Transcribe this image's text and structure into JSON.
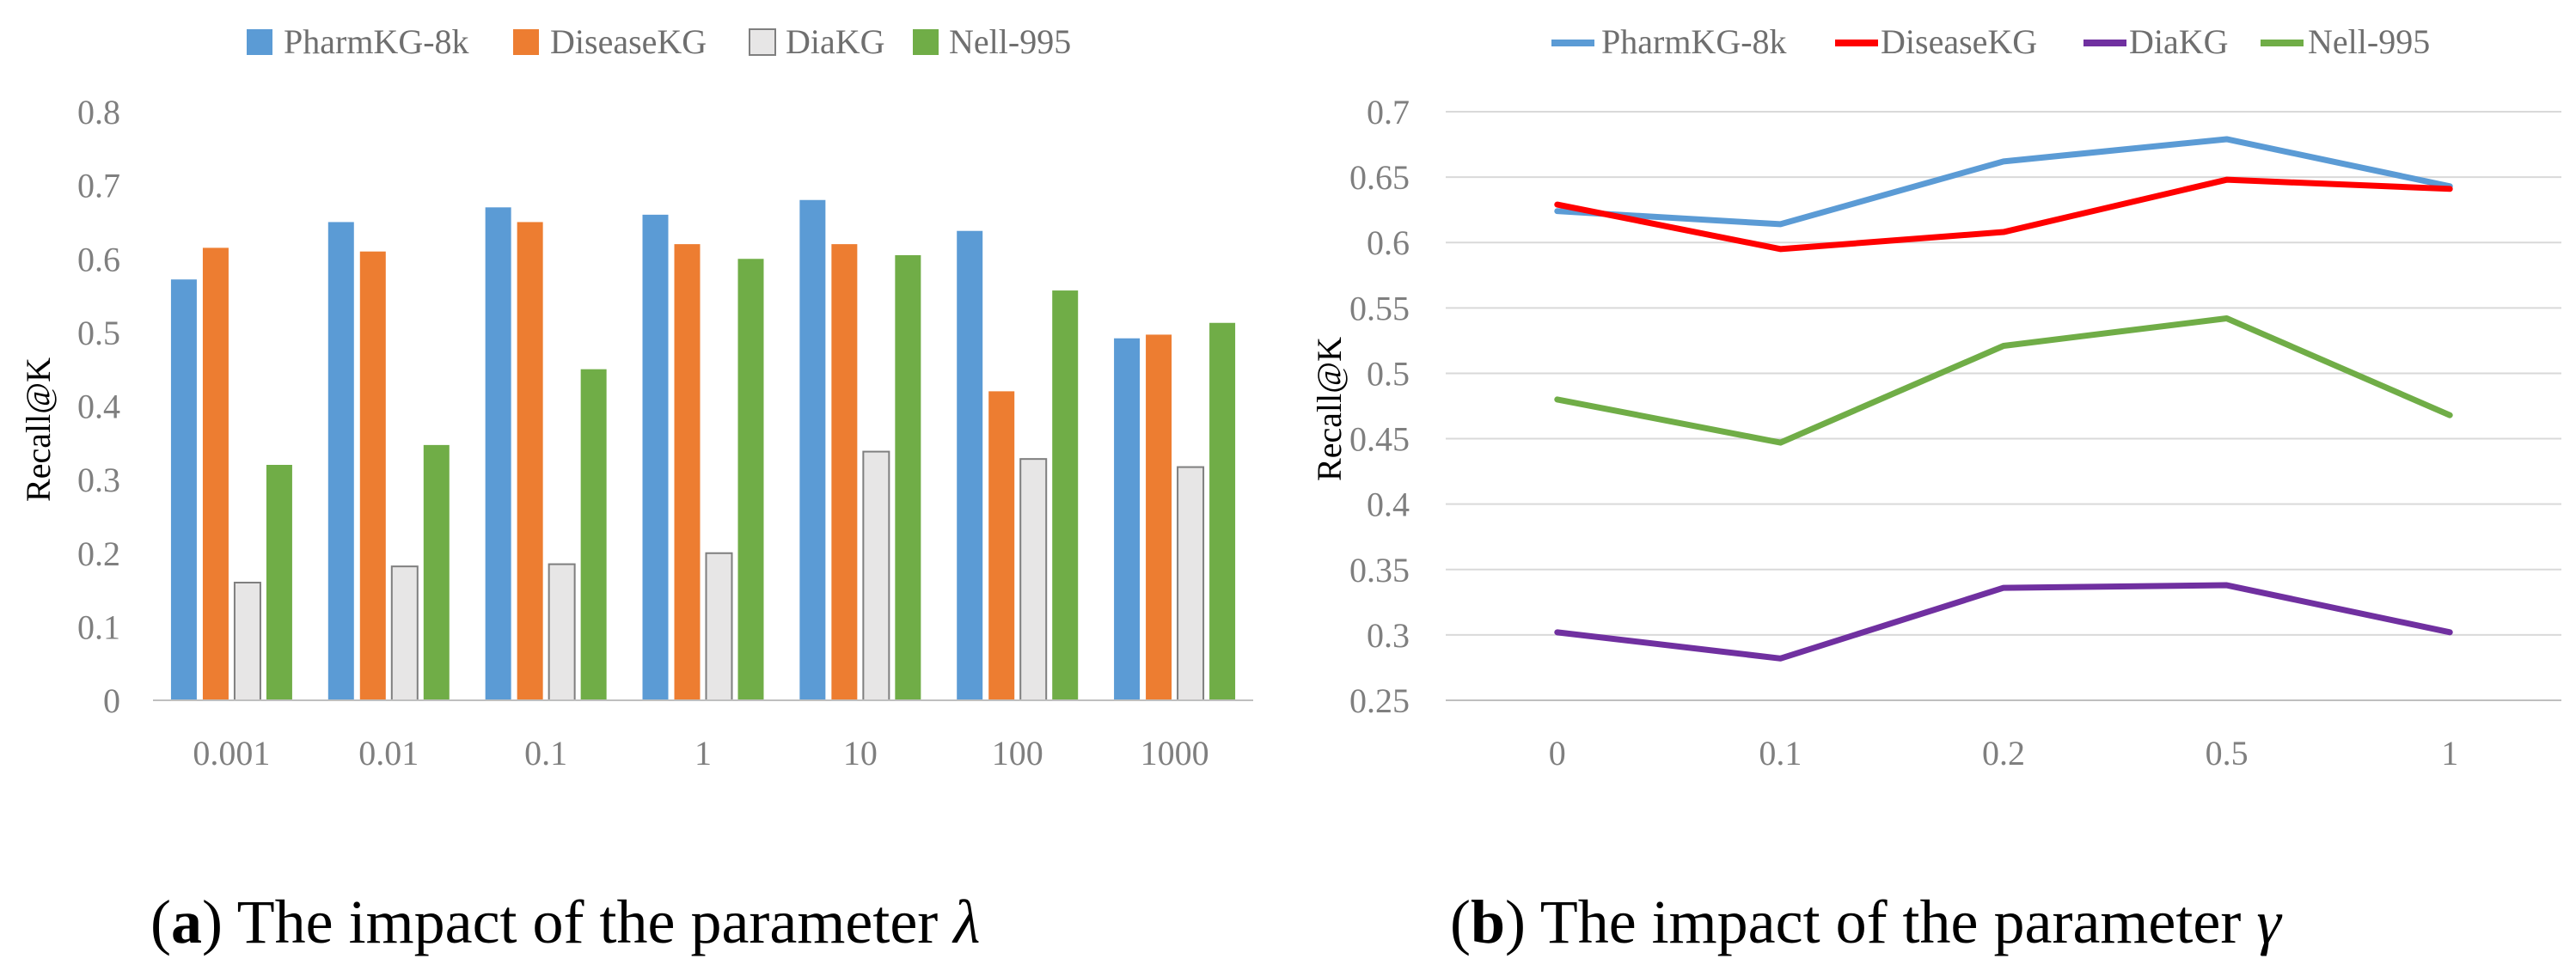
{
  "colors": {
    "blue": "#5b9bd5",
    "orange": "#ed7d31",
    "gray": "#e7e6e6",
    "green": "#70ad47",
    "red": "#ff0000",
    "purple": "#7030a0",
    "axis": "#bfbfbf",
    "grid": "#d9d9d9"
  },
  "chart_data": [
    {
      "type": "bar",
      "categories": [
        "0.001",
        "0.01",
        "0.1",
        "1",
        "10",
        "100",
        "1000"
      ],
      "series": [
        {
          "name": "PharmKG-8k",
          "values": [
            0.572,
            0.65,
            0.67,
            0.66,
            0.68,
            0.638,
            0.492
          ]
        },
        {
          "name": "DiseaseKG",
          "values": [
            0.615,
            0.61,
            0.65,
            0.62,
            0.62,
            0.42,
            0.497
          ]
        },
        {
          "name": "DiaKG",
          "values": [
            0.16,
            0.182,
            0.185,
            0.2,
            0.338,
            0.328,
            0.317
          ]
        },
        {
          "name": "Nell-995",
          "values": [
            0.32,
            0.347,
            0.45,
            0.6,
            0.605,
            0.557,
            0.513
          ]
        }
      ],
      "ylim": [
        0,
        0.8
      ],
      "yticks": [
        "0",
        "0.1",
        "0.2",
        "0.3",
        "0.4",
        "0.5",
        "0.6",
        "0.7",
        "0.8"
      ],
      "ylabel": "Recall@K",
      "xlabel": "",
      "grid": false,
      "legend": "top"
    },
    {
      "type": "line",
      "categories": [
        "0",
        "0.1",
        "0.2",
        "0.5",
        "1"
      ],
      "series": [
        {
          "name": "PharmKG-8k",
          "values": [
            0.624,
            0.614,
            0.662,
            0.679,
            0.643
          ]
        },
        {
          "name": "DiseaseKG",
          "values": [
            0.629,
            0.595,
            0.608,
            0.648,
            0.641
          ]
        },
        {
          "name": "DiaKG",
          "values": [
            0.302,
            0.282,
            0.336,
            0.338,
            0.302
          ]
        },
        {
          "name": "Nell-995",
          "values": [
            0.48,
            0.447,
            0.521,
            0.542,
            0.468
          ]
        }
      ],
      "ylim": [
        0.25,
        0.7
      ],
      "yticks": [
        "0.25",
        "0.3",
        "0.35",
        "0.4",
        "0.45",
        "0.5",
        "0.55",
        "0.6",
        "0.65",
        "0.7"
      ],
      "ylabel": "Recall@K",
      "xlabel": "",
      "grid": true,
      "legend": "top"
    }
  ],
  "captions": {
    "a": {
      "label": "a",
      "text": " The impact of the parameter ",
      "symbol": "λ"
    },
    "b": {
      "label": "b",
      "text": " The impact of the parameter ",
      "symbol": "γ"
    }
  }
}
